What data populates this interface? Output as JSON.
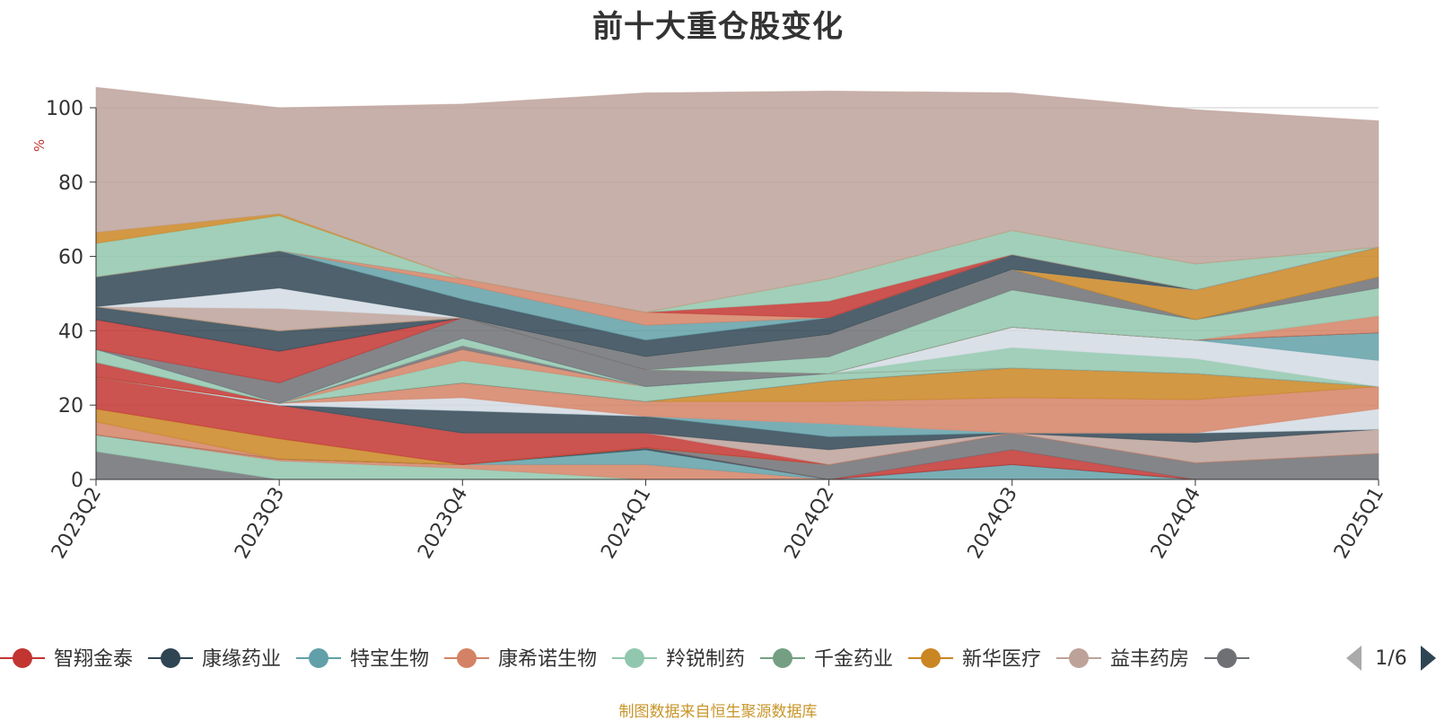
{
  "footer": {
    "source": "制图数据来自恒生聚源数据库"
  },
  "legend_nav": {
    "page": "1/6"
  },
  "chart_data": {
    "type": "area",
    "stacked": true,
    "title": "前十大重仓股变化",
    "ylabel": "%",
    "ylim": [
      0,
      100
    ],
    "yticks": [
      0,
      20,
      40,
      60,
      80,
      100
    ],
    "grid": true,
    "legend_position": "bottom",
    "categories": [
      "2023Q2",
      "2023Q3",
      "2023Q4",
      "2024Q1",
      "2024Q2",
      "2024Q3",
      "2024Q4",
      "2025Q1"
    ],
    "series": [
      {
        "name": "",
        "color": "#6e7074",
        "values": [
          7.5,
          0,
          0,
          0,
          0,
          0,
          0,
          0
        ]
      },
      {
        "name": "",
        "color": "#91c7ae",
        "values": [
          4.5,
          5,
          3,
          0,
          0,
          0,
          0,
          0
        ]
      },
      {
        "name": "",
        "color": "#d48265",
        "values": [
          0,
          0.5,
          1,
          4,
          0,
          0,
          0,
          0
        ]
      },
      {
        "name": "",
        "color": "#61a0a8",
        "values": [
          0,
          0,
          0,
          4,
          0,
          4,
          0,
          0
        ]
      },
      {
        "name": "",
        "color": "#2f4554",
        "values": [
          0,
          0,
          0,
          0.5,
          0,
          0,
          0,
          0
        ]
      },
      {
        "name": "",
        "color": "#c23531",
        "values": [
          0,
          0,
          0,
          0,
          0,
          4,
          0,
          0
        ]
      },
      {
        "name": "",
        "color": "#6e7074",
        "values": [
          0,
          0,
          0,
          0,
          4,
          4.5,
          4.5,
          7
        ]
      },
      {
        "name": "",
        "color": "#d48265",
        "values": [
          3.5,
          0,
          0,
          0,
          0,
          0,
          0,
          0
        ]
      },
      {
        "name": "",
        "color": "#ca8622",
        "values": [
          3.5,
          5.5,
          0,
          0,
          0,
          0,
          0,
          0
        ]
      },
      {
        "name": "",
        "color": "#c23531",
        "values": [
          8.5,
          9,
          8.5,
          4,
          0,
          0,
          0,
          0
        ]
      },
      {
        "name": "",
        "color": "#bda29a",
        "values": [
          0,
          0,
          0,
          0,
          4,
          0,
          5.5,
          6.5
        ]
      },
      {
        "name": "",
        "color": "#2f4554",
        "values": [
          0,
          0,
          6,
          4.5,
          3.5,
          0,
          2.5,
          0
        ]
      },
      {
        "name": "",
        "color": "#61a0a8",
        "values": [
          0,
          0,
          0,
          0,
          3.5,
          0,
          0,
          0
        ]
      },
      {
        "name": "",
        "color": "#d3dbe3",
        "values": [
          0,
          0.5,
          3.5,
          0,
          0,
          0,
          0,
          5.5
        ]
      },
      {
        "name": "",
        "color": "#d48265",
        "values": [
          0,
          0,
          4,
          4,
          6,
          9.5,
          9,
          6
        ]
      },
      {
        "name": "",
        "color": "#ca8622",
        "values": [
          0,
          0,
          0,
          0,
          5.5,
          8,
          7,
          0
        ]
      },
      {
        "name": "",
        "color": "#c23531",
        "values": [
          4,
          0,
          0,
          0,
          0,
          0,
          0,
          0
        ]
      },
      {
        "name": "",
        "color": "#2f4554",
        "values": [
          0,
          0,
          0,
          0,
          0,
          0,
          0,
          0
        ]
      },
      {
        "name": "",
        "color": "#91c7ae",
        "values": [
          0,
          0,
          6,
          4,
          2,
          0,
          0,
          0
        ]
      },
      {
        "name": "",
        "color": "#d48265",
        "values": [
          0,
          0,
          3,
          0,
          0,
          0,
          0,
          0
        ]
      },
      {
        "name": "",
        "color": "#6e7074",
        "values": [
          0,
          0,
          1,
          0,
          0,
          0,
          0,
          0
        ]
      },
      {
        "name": "",
        "color": "#91c7ae",
        "values": [
          3.5,
          0,
          2,
          0,
          0,
          5.5,
          4,
          0
        ]
      },
      {
        "name": "",
        "color": "#d3dbe3",
        "values": [
          0,
          0,
          0,
          0,
          0,
          5.5,
          5,
          7
        ]
      },
      {
        "name": "",
        "color": "#61a0a8",
        "values": [
          0,
          0,
          0,
          0,
          0,
          0,
          0,
          7.5
        ]
      },
      {
        "name": "",
        "color": "#6e7074",
        "values": [
          0,
          5.5,
          5.5,
          4.5,
          0,
          0,
          0,
          0
        ]
      },
      {
        "name": "",
        "color": "#c23531",
        "values": [
          8,
          8.5,
          0,
          0,
          0,
          0,
          0,
          0
        ]
      },
      {
        "name": "",
        "color": "#2f4554",
        "values": [
          3.5,
          5.5,
          0,
          0,
          0,
          0,
          0,
          0
        ]
      },
      {
        "name": "",
        "color": "#d48265",
        "values": [
          0,
          0,
          0,
          0,
          0,
          0,
          0,
          4.5
        ]
      },
      {
        "name": "",
        "color": "#91c7ae",
        "values": [
          0,
          0,
          0,
          0,
          4.5,
          10,
          5.5,
          7.5
        ]
      },
      {
        "name": "",
        "color": "#6e7074",
        "values": [
          0,
          0,
          0,
          3.5,
          6,
          5.5,
          0,
          3
        ]
      },
      {
        "name": "",
        "color": "#ca8622",
        "values": [
          0,
          0,
          0,
          0,
          0,
          0,
          8,
          8
        ]
      },
      {
        "name": "",
        "color": "#bda29a",
        "values": [
          0,
          6,
          0,
          0,
          0,
          0,
          0,
          0
        ]
      },
      {
        "name": "",
        "color": "#d3dbe3",
        "values": [
          0,
          5.5,
          0,
          0,
          0,
          0,
          0,
          0
        ]
      },
      {
        "name": "",
        "color": "#2f4554",
        "values": [
          8,
          10,
          5,
          4.5,
          4.5,
          4,
          0,
          0
        ]
      },
      {
        "name": "",
        "color": "#61a0a8",
        "values": [
          0,
          0,
          4,
          4,
          0,
          0,
          0,
          0
        ]
      },
      {
        "name": "",
        "color": "#d48265",
        "values": [
          0,
          0,
          1.5,
          3.5,
          0,
          0,
          0,
          0
        ]
      },
      {
        "name": "",
        "color": "#c23531",
        "values": [
          0,
          0,
          0,
          0,
          4.5,
          0,
          0,
          0
        ]
      },
      {
        "name": "",
        "color": "#91c7ae",
        "values": [
          9,
          9.5,
          0,
          0,
          6,
          6.5,
          7,
          0
        ]
      },
      {
        "name": "",
        "color": "#ca8622",
        "values": [
          3,
          0.5,
          0,
          0,
          0,
          0,
          0,
          0
        ]
      },
      {
        "name": "",
        "color": "#bda29a",
        "values": [
          39,
          28.5,
          47,
          59,
          50.5,
          37,
          41.5,
          34
        ]
      }
    ],
    "legend": [
      {
        "name": "智翔金泰",
        "color": "#c23531"
      },
      {
        "name": "康缘药业",
        "color": "#2f4554"
      },
      {
        "name": "特宝生物",
        "color": "#61a0a8"
      },
      {
        "name": "康希诺生物",
        "color": "#d48265"
      },
      {
        "name": "羚锐制药",
        "color": "#91c7ae"
      },
      {
        "name": "千金药业",
        "color": "#749f83"
      },
      {
        "name": "新华医疗",
        "color": "#ca8622"
      },
      {
        "name": "益丰药房",
        "color": "#bda29a"
      },
      {
        "name": "",
        "color": "#6e7074"
      }
    ]
  }
}
